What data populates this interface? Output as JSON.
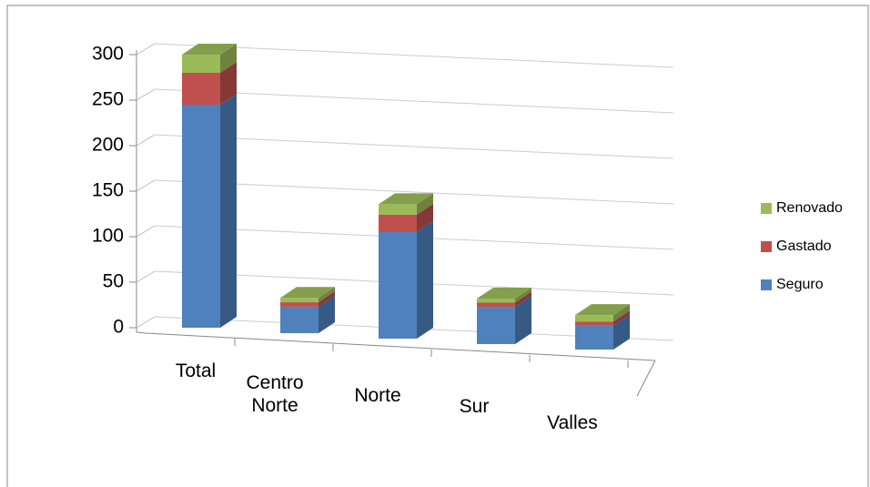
{
  "chart_data": {
    "type": "bar3d_stacked",
    "categories": [
      "Total",
      "Centro Norte",
      "Norte",
      "Sur",
      "Valles"
    ],
    "series": [
      {
        "name": "Seguro",
        "color": "#4f81bd",
        "values": [
          245,
          30,
          125,
          45,
          30
        ]
      },
      {
        "name": "Gastado",
        "color": "#c0504d",
        "values": [
          35,
          5,
          20,
          5,
          5
        ]
      },
      {
        "name": "Renovado",
        "color": "#9bbb59",
        "values": [
          20,
          5,
          12,
          5,
          8
        ]
      }
    ],
    "ylim": [
      0,
      300
    ],
    "yticks": [
      0,
      50,
      100,
      150,
      200,
      250,
      300
    ],
    "grid": true
  }
}
